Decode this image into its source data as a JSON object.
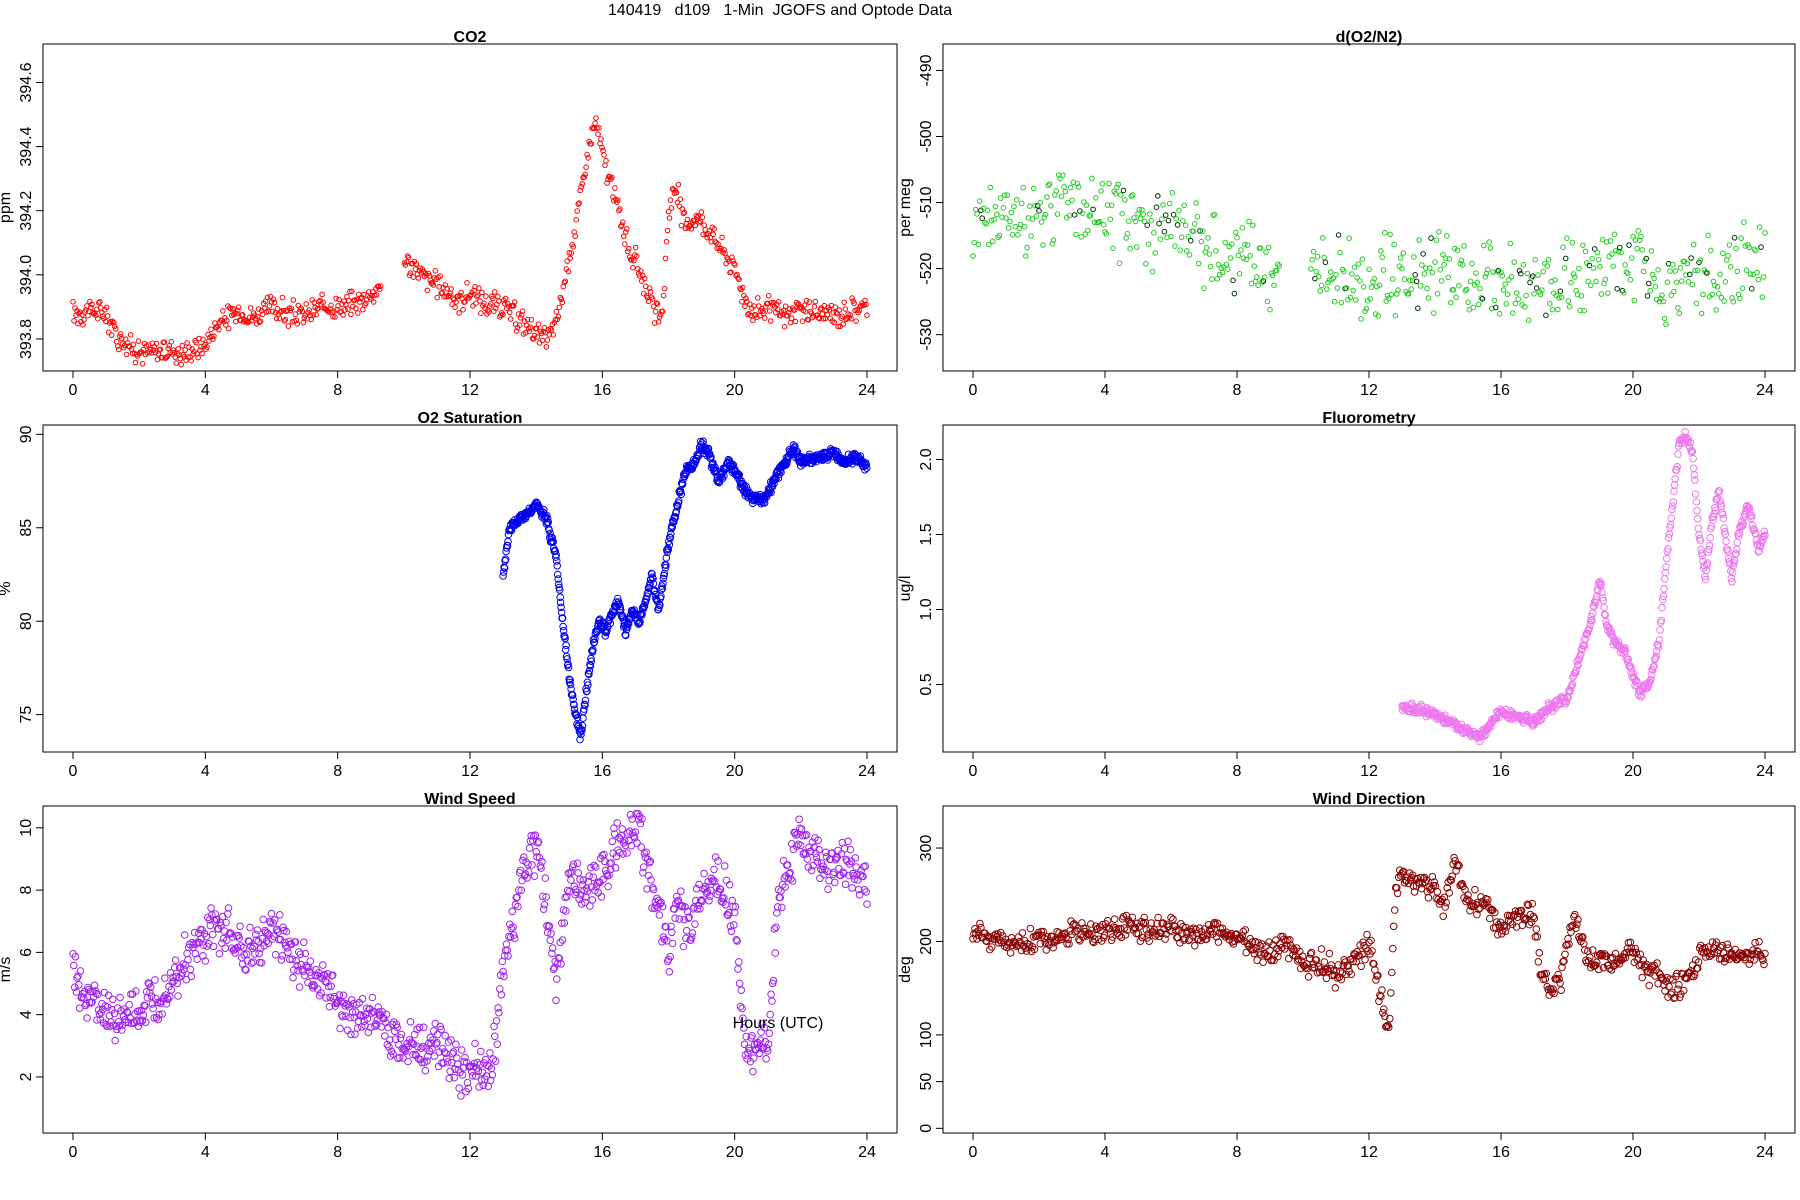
{
  "figure": {
    "title": "140419   d109   1-Min  JGOFS and Optode Data",
    "xlabel": "Hours (UTC)"
  },
  "chart_data": [
    {
      "type": "scatter",
      "title": "CO2",
      "ylabel": "ppm",
      "color": "#ff0000",
      "xlim": [
        0,
        24
      ],
      "xticks": [
        "0",
        "4",
        "8",
        "12",
        "16",
        "20",
        "24"
      ],
      "ylim": [
        393.7,
        394.72
      ],
      "yticks": [
        "393.8",
        "394.0",
        "394.2",
        "394.4",
        "394.6"
      ],
      "series": [
        {
          "x": [
            0.0,
            0.5,
            1.0,
            1.3,
            1.7,
            2.0,
            2.5,
            3.0,
            3.3,
            3.7,
            4.0,
            4.2,
            4.5,
            5.0,
            5.5,
            6.0,
            6.5,
            7.0,
            7.5,
            8.0,
            8.5,
            9.0,
            9.2,
            10.0,
            10.3,
            10.8,
            11.2,
            11.6,
            12.0,
            12.5,
            13.0,
            13.5,
            14.0,
            14.3,
            14.6,
            15.0,
            15.3,
            15.6,
            15.8,
            16.0,
            16.2,
            16.5,
            16.8,
            17.2,
            17.5,
            17.8,
            18.0,
            18.2,
            18.5,
            18.8,
            19.0,
            20.0,
            20.3,
            20.6,
            21.0,
            21.5,
            22.0,
            22.5,
            23.0,
            23.5,
            24.0
          ],
          "y": [
            393.88,
            393.89,
            393.88,
            393.82,
            393.78,
            393.76,
            393.76,
            393.77,
            393.75,
            393.77,
            393.78,
            393.82,
            393.86,
            393.88,
            393.87,
            393.9,
            393.88,
            393.87,
            393.9,
            393.9,
            393.91,
            393.94,
            393.95,
            394.05,
            394.02,
            393.98,
            393.96,
            393.92,
            393.94,
            393.91,
            393.9,
            393.86,
            393.82,
            393.79,
            393.85,
            394.05,
            394.22,
            394.4,
            394.48,
            394.38,
            394.3,
            394.2,
            394.08,
            394.0,
            393.9,
            393.85,
            394.2,
            394.28,
            394.15,
            394.18,
            394.17,
            394.02,
            393.93,
            393.88,
            393.9,
            393.87,
            393.89,
            393.88,
            393.87,
            393.89,
            393.9
          ]
        }
      ]
    },
    {
      "type": "scatter",
      "title": "d(O2/N2)",
      "ylabel": "per meg",
      "color": "#22cc22",
      "xlim": [
        0,
        24
      ],
      "xticks": [
        "0",
        "4",
        "8",
        "12",
        "16",
        "20",
        "24"
      ],
      "ylim": [
        -535.5,
        -486
      ],
      "yticks": [
        "-530",
        "-520",
        "-510",
        "-500",
        "-490"
      ],
      "series": [
        {
          "x": [
            0.0,
            1.0,
            2.0,
            3.0,
            4.0,
            5.0,
            6.0,
            7.0,
            8.0,
            9.0,
            9.3,
            10.2,
            11.0,
            12.0,
            13.0,
            14.0,
            14.6,
            15.0,
            16.0,
            17.0,
            18.0,
            19.0,
            19.4,
            20.0,
            21.0,
            22.0,
            23.0,
            24.0
          ],
          "y": [
            -513,
            -512,
            -511,
            -510,
            -511,
            -513,
            -515,
            -517,
            -518,
            -521,
            -521,
            -520,
            -521,
            -522,
            -521,
            -521,
            -521,
            -521,
            -522,
            -523,
            -521,
            -520,
            -520,
            -519,
            -522,
            -521,
            -520,
            -519
          ]
        }
      ]
    },
    {
      "type": "scatter",
      "title": "O2 Saturation",
      "ylabel": "%",
      "color": "#0000ee",
      "xlim": [
        0,
        24
      ],
      "xticks": [
        "0",
        "4",
        "8",
        "12",
        "16",
        "20",
        "24"
      ],
      "ylim": [
        73,
        90.5
      ],
      "yticks": [
        "75",
        "80",
        "85",
        "90"
      ],
      "series": [
        {
          "x": [
            13.0,
            13.2,
            13.5,
            13.8,
            14.0,
            14.3,
            14.6,
            14.8,
            15.0,
            15.2,
            15.35,
            15.5,
            15.7,
            15.9,
            16.1,
            16.3,
            16.5,
            16.7,
            16.9,
            17.1,
            17.3,
            17.5,
            17.7,
            17.9,
            18.1,
            18.3,
            18.5,
            18.8,
            19.0,
            19.2,
            19.5,
            19.8,
            20.0,
            20.3,
            20.6,
            20.9,
            21.2,
            21.5,
            21.8,
            22.0,
            22.3,
            22.6,
            23.0,
            23.3,
            23.6,
            24.0
          ],
          "y": [
            82.5,
            85.0,
            85.5,
            85.8,
            86.2,
            85.5,
            83.5,
            80.0,
            77.0,
            75.0,
            73.8,
            76.0,
            78.5,
            80.0,
            79.5,
            80.5,
            81.0,
            79.5,
            80.5,
            80.0,
            81.0,
            82.5,
            80.5,
            83.0,
            85.0,
            86.5,
            88.0,
            88.5,
            89.5,
            89.0,
            87.5,
            88.5,
            88.0,
            87.0,
            86.5,
            86.5,
            87.5,
            88.5,
            89.2,
            88.5,
            88.7,
            88.8,
            89.0,
            88.5,
            88.8,
            88.3
          ]
        }
      ]
    },
    {
      "type": "scatter",
      "title": "Fluorometry",
      "ylabel": "ug/l",
      "color": "#ee77ee",
      "xlim": [
        0,
        24
      ],
      "xticks": [
        "0",
        "4",
        "8",
        "12",
        "16",
        "20",
        "24"
      ],
      "ylim": [
        0.05,
        2.23
      ],
      "yticks": [
        "0.5",
        "1.0",
        "1.5",
        "2.0"
      ],
      "series": [
        {
          "x": [
            13.0,
            13.5,
            14.0,
            14.5,
            15.0,
            15.3,
            15.6,
            16.0,
            16.5,
            17.0,
            17.5,
            18.0,
            18.4,
            18.7,
            19.0,
            19.2,
            19.4,
            19.6,
            19.8,
            20.0,
            20.2,
            20.5,
            20.8,
            21.0,
            21.2,
            21.4,
            21.6,
            21.8,
            22.0,
            22.2,
            22.4,
            22.6,
            22.8,
            23.0,
            23.2,
            23.5,
            23.8,
            24.0
          ],
          "y": [
            0.35,
            0.34,
            0.3,
            0.25,
            0.18,
            0.15,
            0.2,
            0.32,
            0.28,
            0.25,
            0.35,
            0.4,
            0.7,
            0.9,
            1.2,
            0.9,
            0.8,
            0.75,
            0.7,
            0.55,
            0.45,
            0.5,
            0.8,
            1.3,
            1.7,
            2.1,
            2.15,
            2.05,
            1.5,
            1.2,
            1.6,
            1.8,
            1.5,
            1.2,
            1.5,
            1.7,
            1.4,
            1.5
          ]
        }
      ]
    },
    {
      "type": "scatter",
      "title": "Wind Speed",
      "ylabel": "m/s",
      "color": "#a020f0",
      "xlim": [
        0,
        24
      ],
      "xticks": [
        "0",
        "4",
        "8",
        "12",
        "16",
        "20",
        "24"
      ],
      "ylim": [
        0.2,
        10.7
      ],
      "yticks": [
        "2",
        "4",
        "6",
        "8",
        "10"
      ],
      "series": [
        {
          "x": [
            0.0,
            0.3,
            0.7,
            1.0,
            1.5,
            2.0,
            2.5,
            3.0,
            3.5,
            4.0,
            4.5,
            5.0,
            5.5,
            6.0,
            6.5,
            7.0,
            7.5,
            8.0,
            8.5,
            9.0,
            9.5,
            10.0,
            10.5,
            11.0,
            11.5,
            11.8,
            12.2,
            12.5,
            12.8,
            13.0,
            13.3,
            13.6,
            14.0,
            14.3,
            14.6,
            15.0,
            15.5,
            16.0,
            16.5,
            17.0,
            17.3,
            17.6,
            18.0,
            18.3,
            18.6,
            19.0,
            19.5,
            20.0,
            20.3,
            20.6,
            21.0,
            21.3,
            21.6,
            21.9,
            22.2,
            22.6,
            23.0,
            23.5,
            24.0
          ],
          "y": [
            5.5,
            4.8,
            4.3,
            4.0,
            3.8,
            4.0,
            4.4,
            5.2,
            5.8,
            6.5,
            6.8,
            6.2,
            6.0,
            6.8,
            6.2,
            5.5,
            5.0,
            4.5,
            4.0,
            4.0,
            3.5,
            3.0,
            2.8,
            3.2,
            2.5,
            2.0,
            2.5,
            2.0,
            3.0,
            5.5,
            7.0,
            8.5,
            9.5,
            7.5,
            5.0,
            8.5,
            8.0,
            8.5,
            9.5,
            10.2,
            9.0,
            8.0,
            6.0,
            7.5,
            6.5,
            8.0,
            8.5,
            7.0,
            3.2,
            3.0,
            2.8,
            7.5,
            8.5,
            9.8,
            9.2,
            9.0,
            8.8,
            8.7,
            8.3
          ]
        }
      ]
    },
    {
      "type": "scatter",
      "title": "Wind Direction",
      "ylabel": "deg",
      "color": "#8b0000",
      "xlim": [
        0,
        24
      ],
      "xticks": [
        "0",
        "4",
        "8",
        "12",
        "16",
        "20",
        "24"
      ],
      "ylim": [
        -5,
        345
      ],
      "yticks": [
        "0",
        "50",
        "100",
        "200",
        "300"
      ],
      "series": [
        {
          "x": [
            0.0,
            0.5,
            1.0,
            1.5,
            2.0,
            2.5,
            3.0,
            3.5,
            4.0,
            5.0,
            6.0,
            7.0,
            8.0,
            8.5,
            9.0,
            9.5,
            10.0,
            10.5,
            11.0,
            11.5,
            12.0,
            12.3,
            12.6,
            12.8,
            13.0,
            13.3,
            13.6,
            14.0,
            14.3,
            14.6,
            15.0,
            15.3,
            15.6,
            16.0,
            16.5,
            17.0,
            17.2,
            17.5,
            17.8,
            18.2,
            18.6,
            19.0,
            19.5,
            20.0,
            20.4,
            20.8,
            21.0,
            21.4,
            21.8,
            22.0,
            22.5,
            23.0,
            23.5,
            24.0
          ],
          "y": [
            212,
            205,
            200,
            198,
            202,
            205,
            208,
            210,
            212,
            215,
            212,
            210,
            205,
            195,
            185,
            200,
            175,
            180,
            165,
            175,
            200,
            150,
            100,
            250,
            270,
            265,
            268,
            255,
            240,
            285,
            240,
            245,
            235,
            210,
            225,
            230,
            170,
            150,
            160,
            230,
            175,
            180,
            180,
            190,
            165,
            170,
            145,
            155,
            165,
            185,
            188,
            185,
            185,
            185
          ]
        }
      ]
    }
  ]
}
